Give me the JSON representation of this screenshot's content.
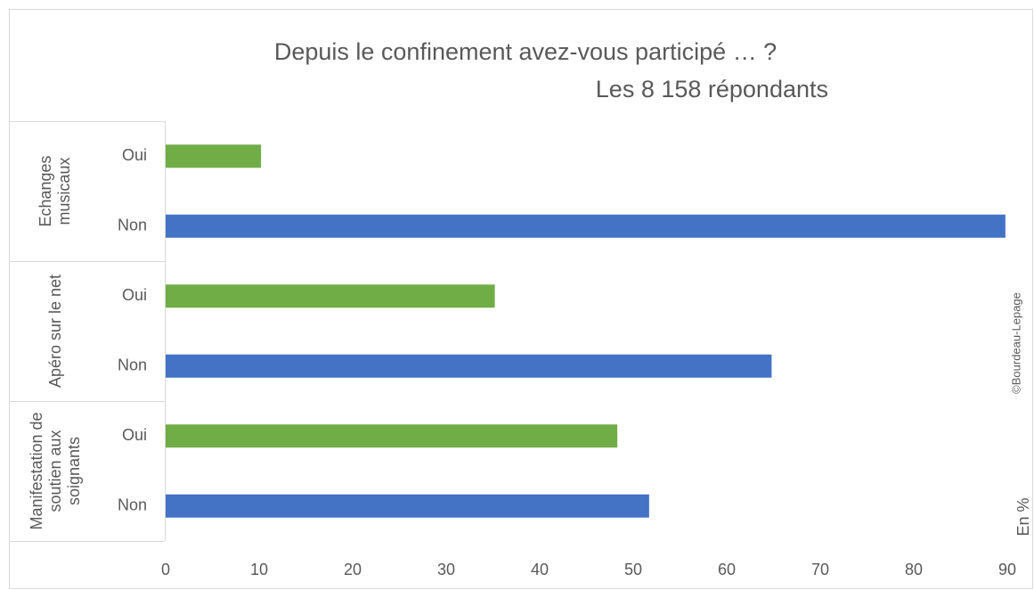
{
  "chart_data": {
    "type": "bar",
    "orientation": "horizontal",
    "title": "Depuis le confinement avez-vous participé … ?",
    "subtitle": "Les 8 158 répondants",
    "groups": [
      {
        "name": "Echanges musicaux",
        "categories": [
          "Oui",
          "Non"
        ],
        "values": [
          10.2,
          89.8
        ]
      },
      {
        "name": "Apéro sur le net",
        "categories": [
          "Oui",
          "Non"
        ],
        "values": [
          35.2,
          64.8
        ]
      },
      {
        "name": "Manifestation de soutien aux soignants",
        "categories": [
          "Oui",
          "Non"
        ],
        "values": [
          48.3,
          51.7
        ]
      }
    ],
    "colors": [
      "#70ad47",
      "#4472c4"
    ],
    "xlim": [
      0,
      90
    ],
    "xticks": [
      0,
      10,
      20,
      30,
      40,
      50,
      60,
      70,
      80,
      90
    ],
    "grid": false,
    "credit": "©Bourdeau-Lepage",
    "unit_note": "En %"
  }
}
